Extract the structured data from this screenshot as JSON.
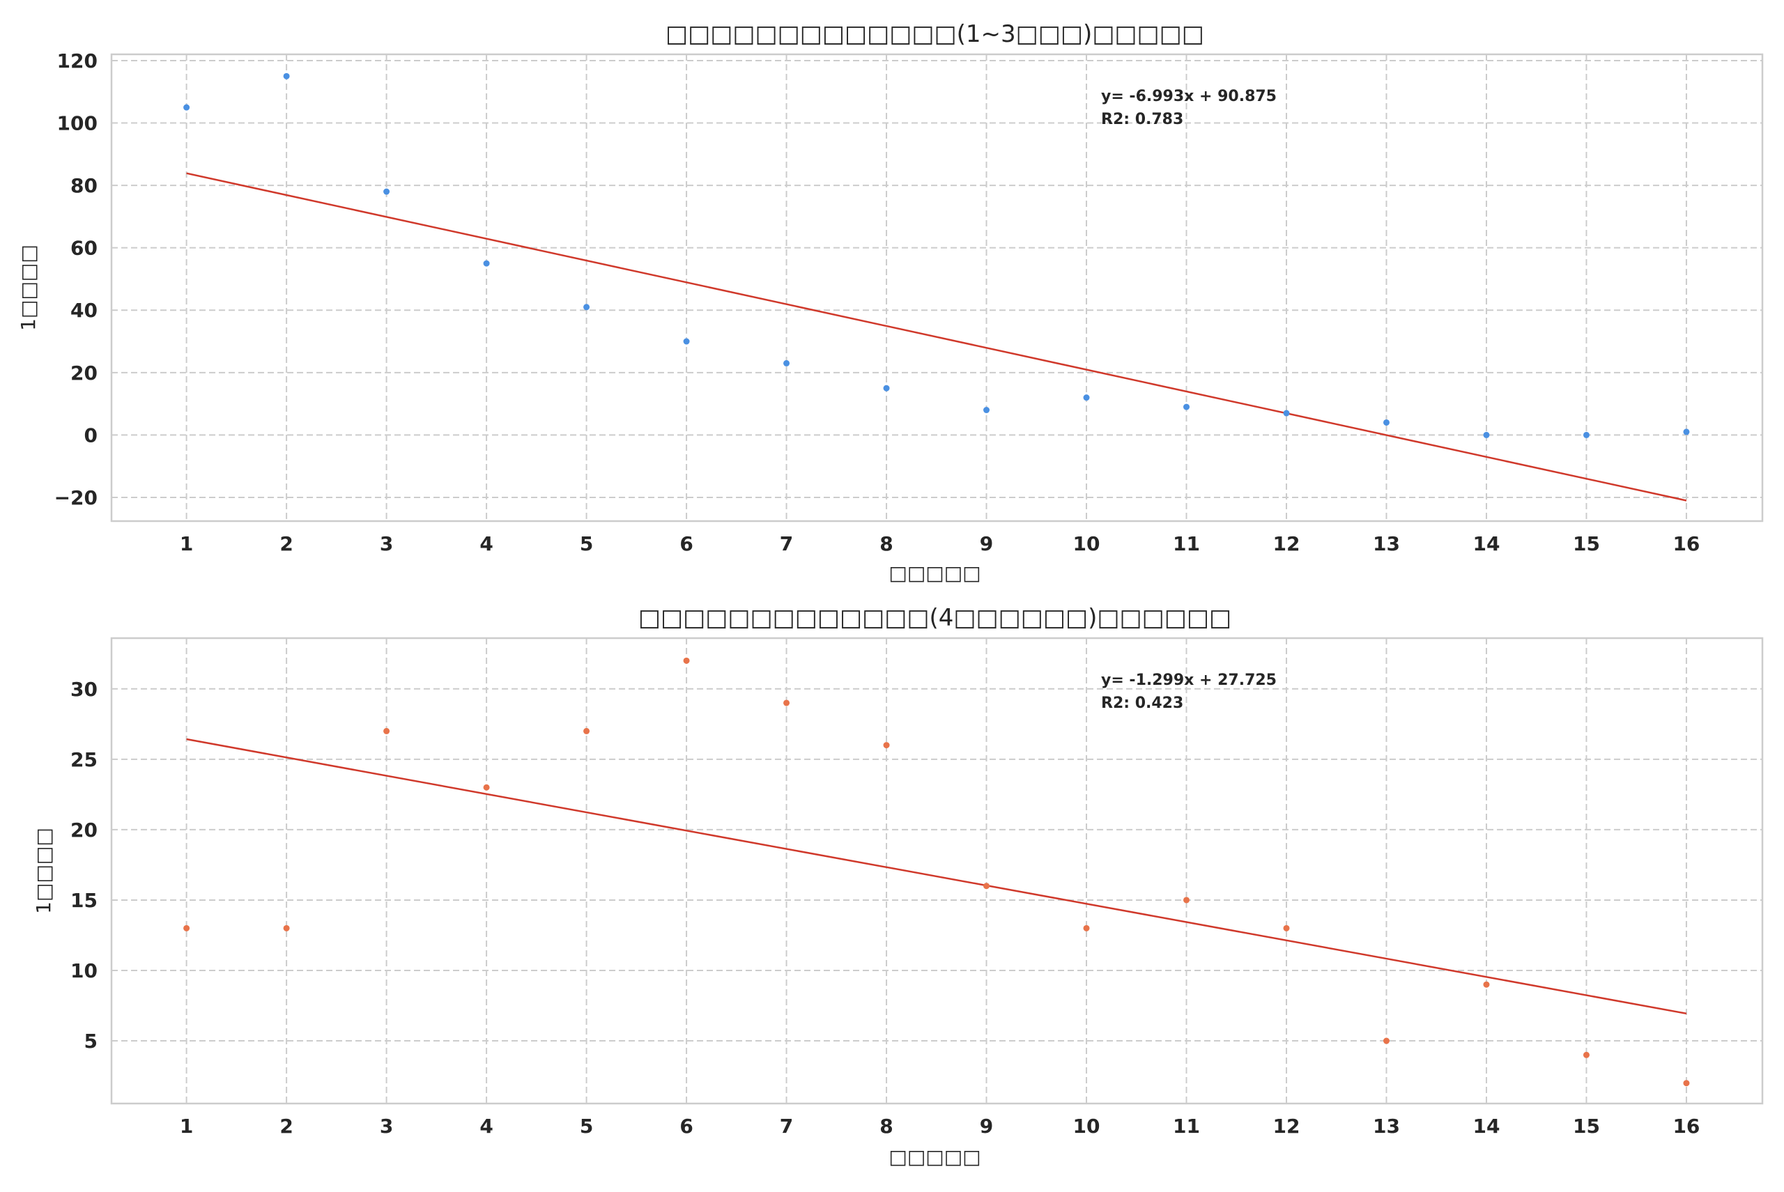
{
  "chart_data": [
    {
      "type": "scatter",
      "title": "□□□□□□□□□□□□□(1~3□□□)□□□□□",
      "xlabel": "□□□□□",
      "ylabel": "1□□□□",
      "x": [
        1,
        2,
        3,
        4,
        5,
        6,
        7,
        8,
        9,
        10,
        11,
        12,
        13,
        14,
        15,
        16
      ],
      "y": [
        105,
        115,
        78,
        55,
        41,
        30,
        23,
        15,
        8,
        12,
        9,
        7,
        4,
        0,
        0,
        1
      ],
      "xlim": [
        0.25,
        16.76
      ],
      "ylim": [
        -27.6,
        122
      ],
      "xticks": [
        1,
        2,
        3,
        4,
        5,
        6,
        7,
        8,
        9,
        10,
        11,
        12,
        13,
        14,
        15,
        16
      ],
      "yticks": [
        -20,
        0,
        20,
        40,
        60,
        80,
        100,
        120
      ],
      "ytick_labels": [
        "−20",
        "0",
        "20",
        "40",
        "60",
        "80",
        "100",
        "120"
      ],
      "grid": true,
      "point_color": "#4a90e2",
      "trendline": {
        "slope": -6.993,
        "intercept": 90.875,
        "color": "#d0392b"
      },
      "annotation": [
        "y= -6.993x + 90.875",
        "R2: 0.783"
      ]
    },
    {
      "type": "scatter",
      "title": "□□□□□□□□□□□□□(4□□□□□□)□□□□□□",
      "xlabel": "□□□□□",
      "ylabel": "1□□□□",
      "x": [
        1,
        2,
        3,
        4,
        5,
        6,
        7,
        8,
        9,
        10,
        11,
        12,
        13,
        14,
        15,
        16
      ],
      "y": [
        13,
        13,
        27,
        23,
        27,
        32,
        29,
        26,
        16,
        13,
        15,
        13,
        5,
        9,
        4,
        2
      ],
      "xlim": [
        0.25,
        16.76
      ],
      "ylim": [
        0.55,
        33.6
      ],
      "xticks": [
        1,
        2,
        3,
        4,
        5,
        6,
        7,
        8,
        9,
        10,
        11,
        12,
        13,
        14,
        15,
        16
      ],
      "yticks": [
        5,
        10,
        15,
        20,
        25,
        30
      ],
      "ytick_labels": [
        "5",
        "10",
        "15",
        "20",
        "25",
        "30"
      ],
      "grid": true,
      "point_color": "#e8734a",
      "trendline": {
        "slope": -1.299,
        "intercept": 27.725,
        "color": "#d0392b"
      },
      "annotation": [
        "y= -1.299x + 27.725",
        "R2: 0.423"
      ]
    }
  ]
}
